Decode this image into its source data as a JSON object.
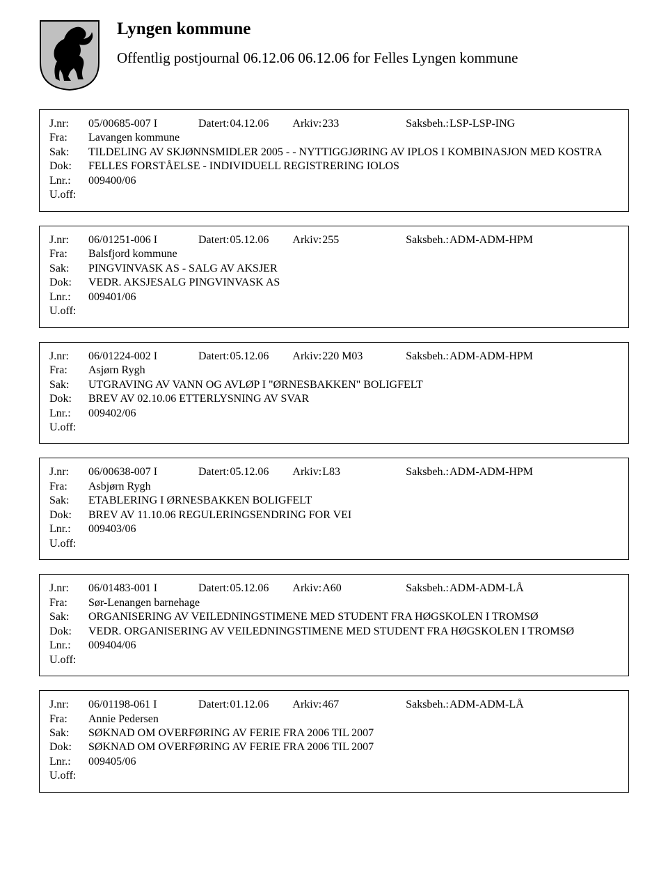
{
  "header": {
    "title": "Lyngen kommune",
    "subtitle": "Offentlig postjournal 06.12.06 06.12.06 for Felles Lyngen kommune"
  },
  "crest": {
    "shield_fill": "#c0c0c0",
    "shield_stroke": "#000000",
    "horse_fill": "#000000"
  },
  "labels": {
    "jnr": "J.nr:",
    "fra": "Fra:",
    "sak": "Sak:",
    "dok": "Dok:",
    "lnr": "Lnr.:",
    "uoff": "U.off:",
    "datert": "Datert:",
    "arkiv": "Arkiv:",
    "saksbeh": "Saksbeh.:"
  },
  "entries": [
    {
      "jnr": "05/00685-007 I",
      "datert": "04.12.06",
      "arkiv": "233",
      "saksbeh": "LSP-LSP-ING",
      "fra": "Lavangen kommune",
      "sak": "TILDELING AV SKJØNNSMIDLER 2005 -  - NYTTIGGJØRING AV IPLOS I KOMBINASJON MED KOSTRA",
      "dok": "FELLES FORSTÅELSE - INDIVIDUELL REGISTRERING IOLOS",
      "lnr": "009400/06",
      "uoff": ""
    },
    {
      "jnr": "06/01251-006 I",
      "datert": "05.12.06",
      "arkiv": "255",
      "saksbeh": "ADM-ADM-HPM",
      "fra": "Balsfjord kommune",
      "sak": "PINGVINVASK AS - SALG AV AKSJER",
      "dok": "VEDR. AKSJESALG PINGVINVASK AS",
      "lnr": "009401/06",
      "uoff": ""
    },
    {
      "jnr": "06/01224-002 I",
      "datert": "05.12.06",
      "arkiv": "220 M03",
      "saksbeh": "ADM-ADM-HPM",
      "fra": "Asjørn Rygh",
      "sak": "UTGRAVING AV VANN OG AVLØP I \"ØRNESBAKKEN\" BOLIGFELT",
      "dok": "BREV AV 02.10.06 ETTERLYSNING AV SVAR",
      "lnr": "009402/06",
      "uoff": ""
    },
    {
      "jnr": "06/00638-007 I",
      "datert": "05.12.06",
      "arkiv": "L83",
      "saksbeh": "ADM-ADM-HPM",
      "fra": "Asbjørn Rygh",
      "sak": "ETABLERING I ØRNESBAKKEN BOLIGFELT",
      "dok": "BREV AV 11.10.06 REGULERINGSENDRING FOR VEI",
      "lnr": "009403/06",
      "uoff": ""
    },
    {
      "jnr": "06/01483-001 I",
      "datert": "05.12.06",
      "arkiv": "A60",
      "saksbeh": "ADM-ADM-LÅ",
      "fra": "Sør-Lenangen barnehage",
      "sak": "ORGANISERING AV VEILEDNINGSTIMENE MED STUDENT FRA HØGSKOLEN I TROMSØ",
      "dok": "VEDR. ORGANISERING AV VEILEDNINGSTIMENE MED STUDENT FRA HØGSKOLEN I TROMSØ",
      "lnr": "009404/06",
      "uoff": ""
    },
    {
      "jnr": "06/01198-061 I",
      "datert": "01.12.06",
      "arkiv": "467",
      "saksbeh": "ADM-ADM-LÅ",
      "fra": "Annie Pedersen",
      "sak": "SØKNAD OM OVERFØRING AV FERIE FRA 2006 TIL 2007",
      "dok": "SØKNAD OM OVERFØRING AV FERIE FRA 2006 TIL 2007",
      "lnr": "009405/06",
      "uoff": ""
    }
  ]
}
